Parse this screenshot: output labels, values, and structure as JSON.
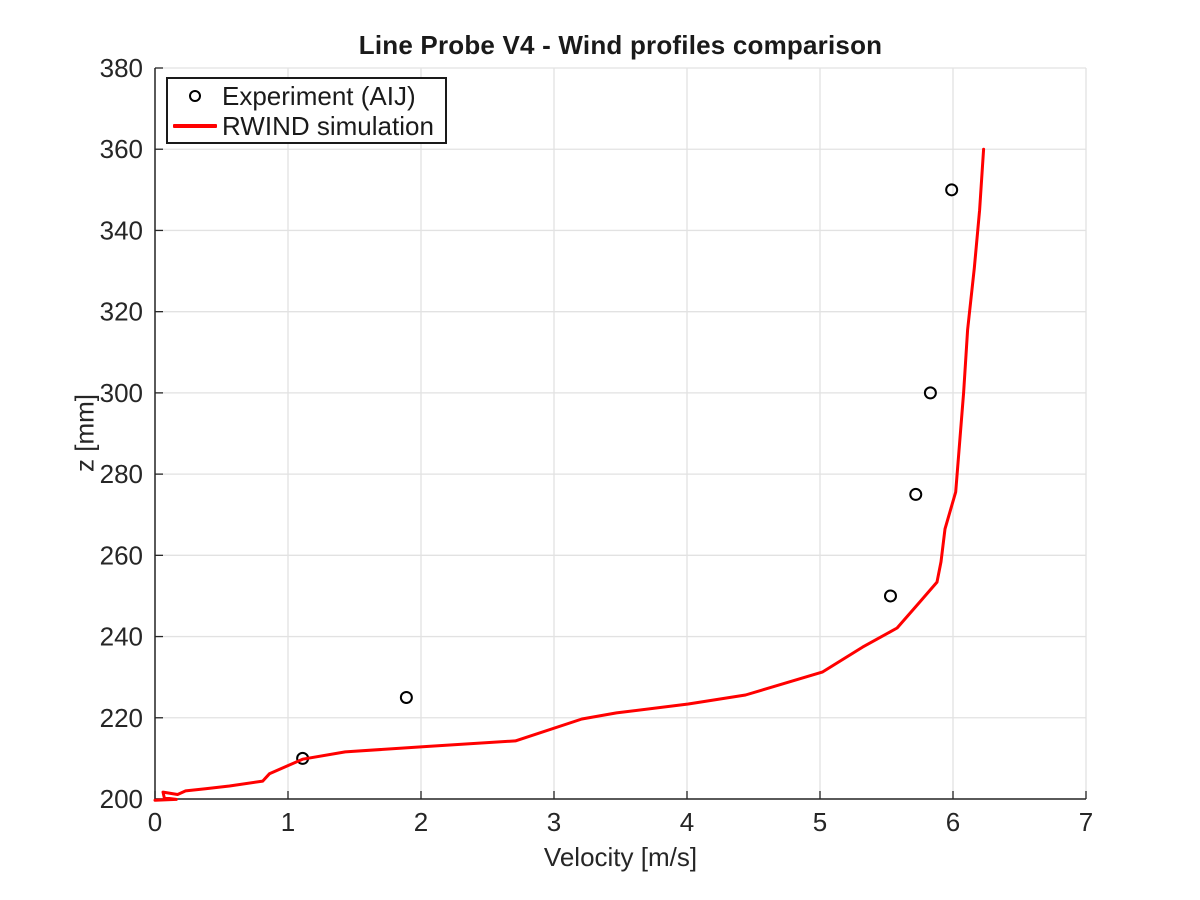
{
  "figure": {
    "background": "#ffffff"
  },
  "colors": {
    "text": "#262626",
    "title": "#1a1a1a",
    "axis": "#262626",
    "grid": "#e2e2e2",
    "simulation_line": "#ff0000",
    "experiment_marker": "#000000"
  },
  "legend": {
    "position": "top-left",
    "items": [
      {
        "label": "Experiment (AIJ)",
        "marker": "open-circle",
        "color": "#000000"
      },
      {
        "label": "RWIND simulation",
        "marker": "line",
        "color": "#ff0000"
      }
    ]
  },
  "chart_data": {
    "type": "line",
    "title": "Line Probe V4 - Wind profiles comparison",
    "xlabel": "Velocity [m/s]",
    "ylabel": "z [mm]",
    "xlim": [
      0,
      7
    ],
    "ylim": [
      200,
      380
    ],
    "xticks": [
      0,
      1,
      2,
      3,
      4,
      5,
      6,
      7
    ],
    "yticks": [
      200,
      220,
      240,
      260,
      280,
      300,
      320,
      340,
      360,
      380
    ],
    "grid": true,
    "tick_direction": "in",
    "legend_position": "top-left",
    "series": [
      {
        "name": "Experiment (AIJ)",
        "type": "scatter",
        "marker": "open-circle",
        "color": "#000000",
        "points": [
          [
            1.11,
            210
          ],
          [
            1.89,
            225
          ],
          [
            5.53,
            250
          ],
          [
            5.72,
            275
          ],
          [
            5.83,
            300
          ],
          [
            5.99,
            350
          ]
        ]
      },
      {
        "name": "RWIND simulation",
        "type": "line",
        "color": "#ff0000",
        "line_width": 3,
        "points": [
          [
            0.0,
            199.7
          ],
          [
            0.16,
            199.9
          ],
          [
            0.07,
            200.3
          ],
          [
            0.06,
            201.7
          ],
          [
            0.17,
            201.1
          ],
          [
            0.23,
            202.0
          ],
          [
            0.38,
            202.5
          ],
          [
            0.56,
            203.2
          ],
          [
            0.81,
            204.4
          ],
          [
            0.86,
            206.2
          ],
          [
            1.11,
            209.8
          ],
          [
            1.43,
            211.6
          ],
          [
            2.07,
            213.0
          ],
          [
            2.71,
            214.3
          ],
          [
            3.21,
            219.7
          ],
          [
            3.47,
            221.2
          ],
          [
            4.01,
            223.4
          ],
          [
            4.44,
            225.6
          ],
          [
            5.02,
            231.3
          ],
          [
            5.32,
            237.4
          ],
          [
            5.58,
            242.1
          ],
          [
            5.75,
            248.5
          ],
          [
            5.88,
            253.4
          ],
          [
            5.91,
            258.4
          ],
          [
            5.94,
            266.5
          ],
          [
            6.02,
            275.6
          ],
          [
            6.08,
            300.0
          ],
          [
            6.11,
            315.5
          ],
          [
            6.16,
            330.7
          ],
          [
            6.2,
            345.0
          ],
          [
            6.23,
            360.0
          ]
        ]
      }
    ]
  }
}
